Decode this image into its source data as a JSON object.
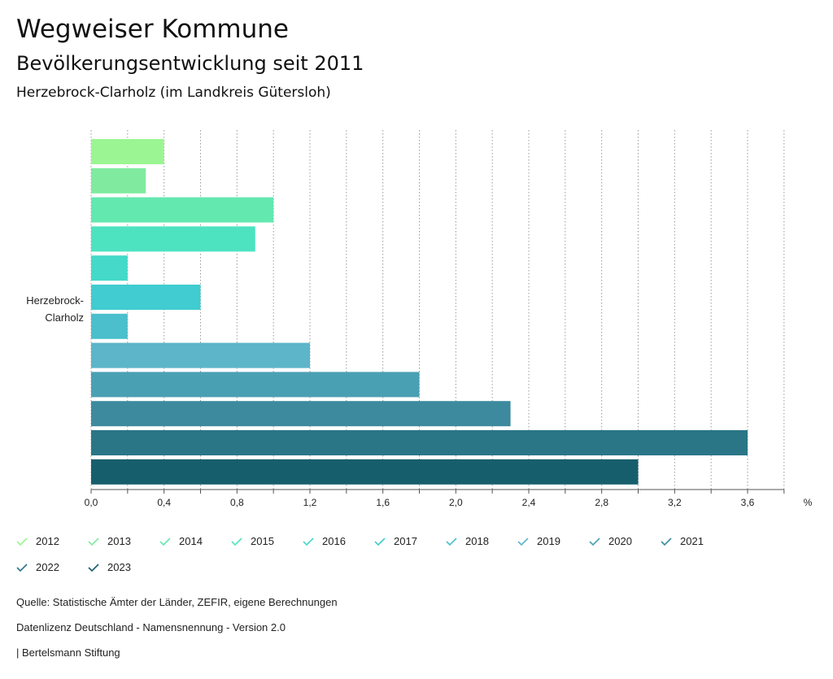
{
  "header": {
    "title": "Wegweiser Kommune",
    "subtitle": "Bevölkerungsentwicklung seit 2011",
    "region": "Herzebrock-Clarholz (im Landkreis Gütersloh)"
  },
  "chart_data": {
    "type": "bar",
    "orientation": "horizontal",
    "category_lines": [
      "Herzebrock-",
      "Clarholz"
    ],
    "series": [
      {
        "name": "2012",
        "value": 0.4,
        "color": "#9cf593"
      },
      {
        "name": "2013",
        "value": 0.3,
        "color": "#80eb9f"
      },
      {
        "name": "2014",
        "value": 1.0,
        "color": "#63e8b0"
      },
      {
        "name": "2015",
        "value": 0.9,
        "color": "#4de3c0"
      },
      {
        "name": "2016",
        "value": 0.2,
        "color": "#44d9c8"
      },
      {
        "name": "2017",
        "value": 0.6,
        "color": "#40ccd0"
      },
      {
        "name": "2018",
        "value": 0.2,
        "color": "#4bbfcc"
      },
      {
        "name": "2019",
        "value": 1.2,
        "color": "#5cb5c8"
      },
      {
        "name": "2020",
        "value": 1.8,
        "color": "#4aa0b3"
      },
      {
        "name": "2021",
        "value": 2.3,
        "color": "#3d8a9e"
      },
      {
        "name": "2022",
        "value": 3.6,
        "color": "#2a7687"
      },
      {
        "name": "2023",
        "value": 3.0,
        "color": "#175e6d"
      }
    ],
    "xlim": [
      0,
      3.8
    ],
    "x_ticks": [
      "0,0",
      "0,4",
      "0,8",
      "1,2",
      "1,6",
      "2,0",
      "2,4",
      "2,8",
      "3,2",
      "3,6"
    ],
    "x_tick_values": [
      0,
      0.4,
      0.8,
      1.2,
      1.6,
      2.0,
      2.4,
      2.8,
      3.2,
      3.6
    ],
    "x_unit": "%",
    "grid": "vertical-dotted",
    "legend_position": "bottom"
  },
  "footer": {
    "source": "Quelle: Statistische Ämter der Länder, ZEFIR, eigene Berechnungen",
    "license": "Datenlizenz Deutschland - Namensnennung - Version 2.0",
    "publisher": "| Bertelsmann Stiftung"
  }
}
